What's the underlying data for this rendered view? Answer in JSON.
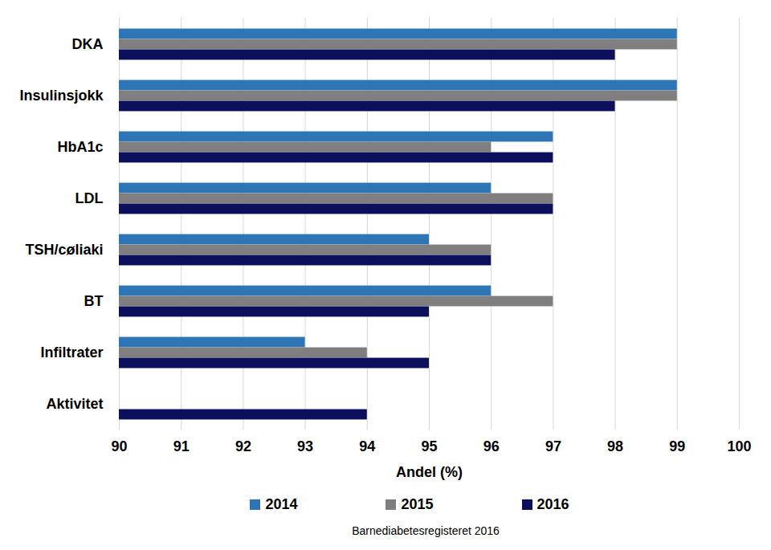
{
  "chart_data": {
    "type": "bar",
    "orientation": "horizontal",
    "categories": [
      "DKA",
      "Insulinsjokk",
      "HbA1c",
      "LDL",
      "TSH/cøliaki",
      "BT",
      "Infiltrater",
      "Aktivitet"
    ],
    "series": [
      {
        "name": "2014",
        "color": "#2e75b6",
        "values": [
          99,
          99,
          97,
          96,
          95,
          96,
          93,
          null
        ]
      },
      {
        "name": "2015",
        "color": "#7f7f7f",
        "values": [
          99,
          99,
          96,
          97,
          96,
          97,
          94,
          null
        ]
      },
      {
        "name": "2016",
        "color": "#0b0f5c",
        "values": [
          98,
          98,
          97,
          97,
          96,
          95,
          95,
          94
        ]
      }
    ],
    "xlabel": "Andel (%)",
    "xlim": [
      90,
      100
    ],
    "xticks": [
      90,
      91,
      92,
      93,
      94,
      95,
      96,
      97,
      98,
      99,
      100
    ],
    "grid": true,
    "legend": "bottom",
    "source": "Barnediabetesregisteret 2016"
  }
}
